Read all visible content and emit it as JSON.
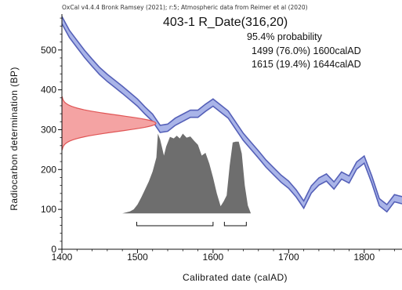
{
  "chart_data": {
    "type": "area",
    "credit": "OxCal v4.4.4 Bronk Ramsey (2021); r:5; Atmospheric data from Reimer et al (2020)",
    "title": "403-1 R_Date(316,20)",
    "info_lines": [
      "95.4% probability",
      "1499 (76.0%) 1600calAD",
      "1615 (19.4%) 1644calAD"
    ],
    "xlabel": "Calibrated date (calAD)",
    "ylabel": "Radiocarbon determination (BP)",
    "xlim": [
      1400,
      1850
    ],
    "ylim": [
      0,
      590
    ],
    "x_ticks": [
      1400,
      1500,
      1600,
      1700,
      1800
    ],
    "y_ticks": [
      0,
      100,
      200,
      300,
      400,
      500
    ],
    "calibration_curve": {
      "color": "#5560b8",
      "fill": "#a9b4e8",
      "points": [
        [
          1400,
          575
        ],
        [
          1410,
          540
        ],
        [
          1420,
          515
        ],
        [
          1430,
          490
        ],
        [
          1440,
          468
        ],
        [
          1450,
          447
        ],
        [
          1460,
          430
        ],
        [
          1470,
          415
        ],
        [
          1480,
          400
        ],
        [
          1490,
          384
        ],
        [
          1500,
          368
        ],
        [
          1510,
          348
        ],
        [
          1520,
          330
        ],
        [
          1530,
          302
        ],
        [
          1540,
          305
        ],
        [
          1550,
          320
        ],
        [
          1560,
          330
        ],
        [
          1570,
          340
        ],
        [
          1580,
          340
        ],
        [
          1590,
          355
        ],
        [
          1600,
          368
        ],
        [
          1610,
          353
        ],
        [
          1620,
          338
        ],
        [
          1630,
          310
        ],
        [
          1640,
          282
        ],
        [
          1650,
          260
        ],
        [
          1660,
          238
        ],
        [
          1670,
          215
        ],
        [
          1680,
          196
        ],
        [
          1690,
          177
        ],
        [
          1700,
          162
        ],
        [
          1710,
          140
        ],
        [
          1720,
          112
        ],
        [
          1730,
          150
        ],
        [
          1740,
          170
        ],
        [
          1750,
          180
        ],
        [
          1760,
          160
        ],
        [
          1770,
          185
        ],
        [
          1780,
          175
        ],
        [
          1790,
          210
        ],
        [
          1800,
          225
        ],
        [
          1810,
          175
        ],
        [
          1820,
          118
        ],
        [
          1830,
          103
        ],
        [
          1840,
          128
        ],
        [
          1850,
          123
        ]
      ],
      "half_width": 9
    },
    "radiocarbon_date": {
      "mean": 316,
      "sd": 20,
      "color": "#e05555",
      "fill": "#f4a3a3"
    },
    "posterior": {
      "color": "#6e6e6e",
      "points": [
        [
          1480,
          90
        ],
        [
          1490,
          95
        ],
        [
          1495,
          100
        ],
        [
          1500,
          112
        ],
        [
          1505,
          130
        ],
        [
          1510,
          150
        ],
        [
          1515,
          170
        ],
        [
          1520,
          195
        ],
        [
          1525,
          230
        ],
        [
          1527,
          290
        ],
        [
          1530,
          275
        ],
        [
          1535,
          235
        ],
        [
          1538,
          258
        ],
        [
          1543,
          282
        ],
        [
          1548,
          278
        ],
        [
          1552,
          285
        ],
        [
          1556,
          278
        ],
        [
          1560,
          290
        ],
        [
          1565,
          280
        ],
        [
          1570,
          283
        ],
        [
          1575,
          272
        ],
        [
          1580,
          262
        ],
        [
          1585,
          235
        ],
        [
          1590,
          242
        ],
        [
          1595,
          215
        ],
        [
          1600,
          180
        ],
        [
          1605,
          140
        ],
        [
          1610,
          108
        ],
        [
          1614,
          120
        ],
        [
          1618,
          135
        ],
        [
          1622,
          210
        ],
        [
          1626,
          268
        ],
        [
          1630,
          270
        ],
        [
          1634,
          270
        ],
        [
          1638,
          240
        ],
        [
          1642,
          160
        ],
        [
          1646,
          110
        ],
        [
          1650,
          90
        ]
      ],
      "baseline": 90
    },
    "ranges_95": [
      {
        "from": 1499,
        "to": 1600
      },
      {
        "from": 1615,
        "to": 1644
      }
    ],
    "grid": false,
    "legend": "none"
  }
}
